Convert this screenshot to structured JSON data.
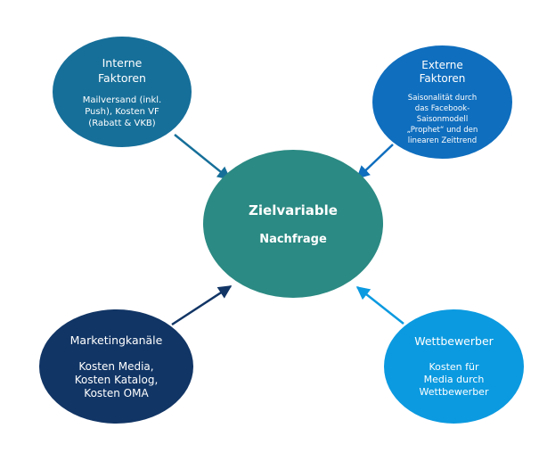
{
  "center": {
    "title": "Zielvariable",
    "subtitle": "Nachfrage"
  },
  "nodes": {
    "top_left": {
      "title_lines": [
        "Interne",
        "Faktoren"
      ],
      "body_lines": [
        "Mailversand (inkl.",
        "Push), Kosten VF",
        "(Rabatt & VKB)"
      ]
    },
    "top_right": {
      "title_lines": [
        "Externe",
        "Faktoren"
      ],
      "body_lines": [
        "Saisonalität durch",
        "das Facebook-",
        "Saisonmodell",
        "„Prophet“ und den",
        "linearen Zeittrend"
      ]
    },
    "bottom_left": {
      "title_lines": [
        "Marketingkanäle"
      ],
      "body_lines": [
        "Kosten Media,",
        "Kosten Katalog,",
        "Kosten OMA"
      ]
    },
    "bottom_right": {
      "title_lines": [
        "Wettbewerber"
      ],
      "body_lines": [
        "Kosten für",
        "Media durch",
        "Wettbewerber"
      ]
    }
  },
  "colors": {
    "center": "#2b8a83",
    "top_left": "#166f99",
    "top_right": "#0f6ebe",
    "bottom_left": "#113565",
    "bottom_right": "#0b9ae0"
  }
}
